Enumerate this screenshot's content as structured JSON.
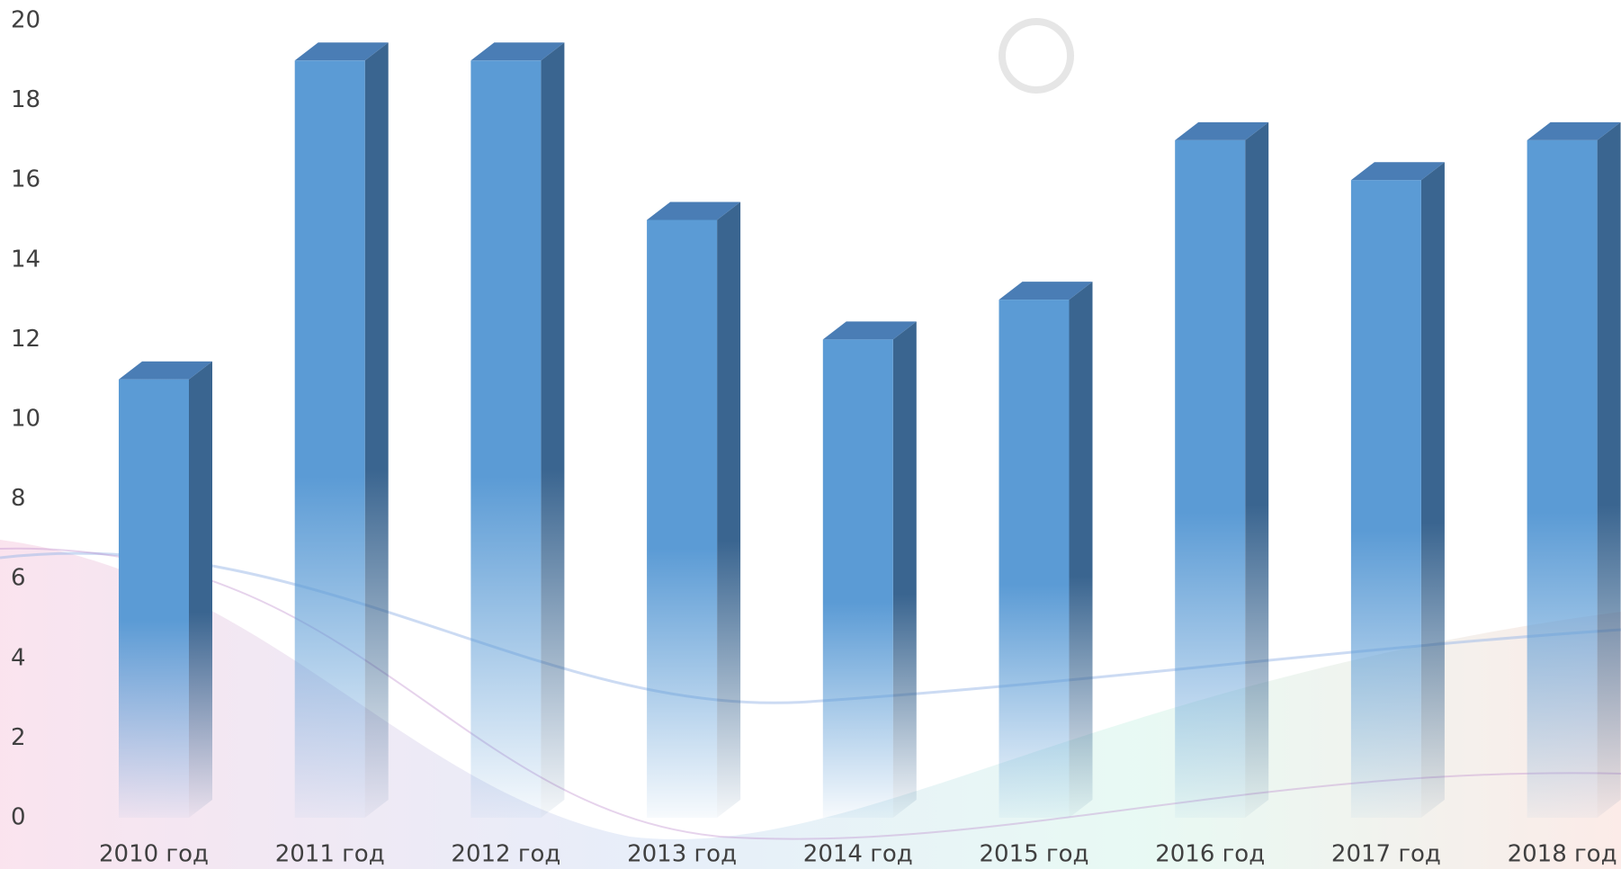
{
  "chart_data": {
    "type": "bar",
    "categories": [
      "2010 год",
      "2011 год",
      "2012 год",
      "2013 год",
      "2014 год",
      "2015 год",
      "2016 год",
      "2017 год",
      "2018 год"
    ],
    "values": [
      11,
      19,
      19,
      15,
      12,
      13,
      17,
      16,
      17
    ],
    "color": "#5b9bd5",
    "ylim": [
      0,
      20
    ],
    "yticks": [
      0,
      2,
      4,
      6,
      8,
      10,
      12,
      14,
      16,
      18,
      20
    ],
    "grid": false
  }
}
